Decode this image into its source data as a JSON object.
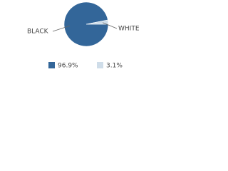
{
  "chart_data": {
    "type": "pie",
    "categories": [
      "BLACK",
      "WHITE"
    ],
    "values": [
      96.9,
      3.1
    ],
    "value_labels": [
      "96.9%",
      "3.1%"
    ],
    "colors": [
      "#336699",
      "#cfdde9"
    ]
  }
}
